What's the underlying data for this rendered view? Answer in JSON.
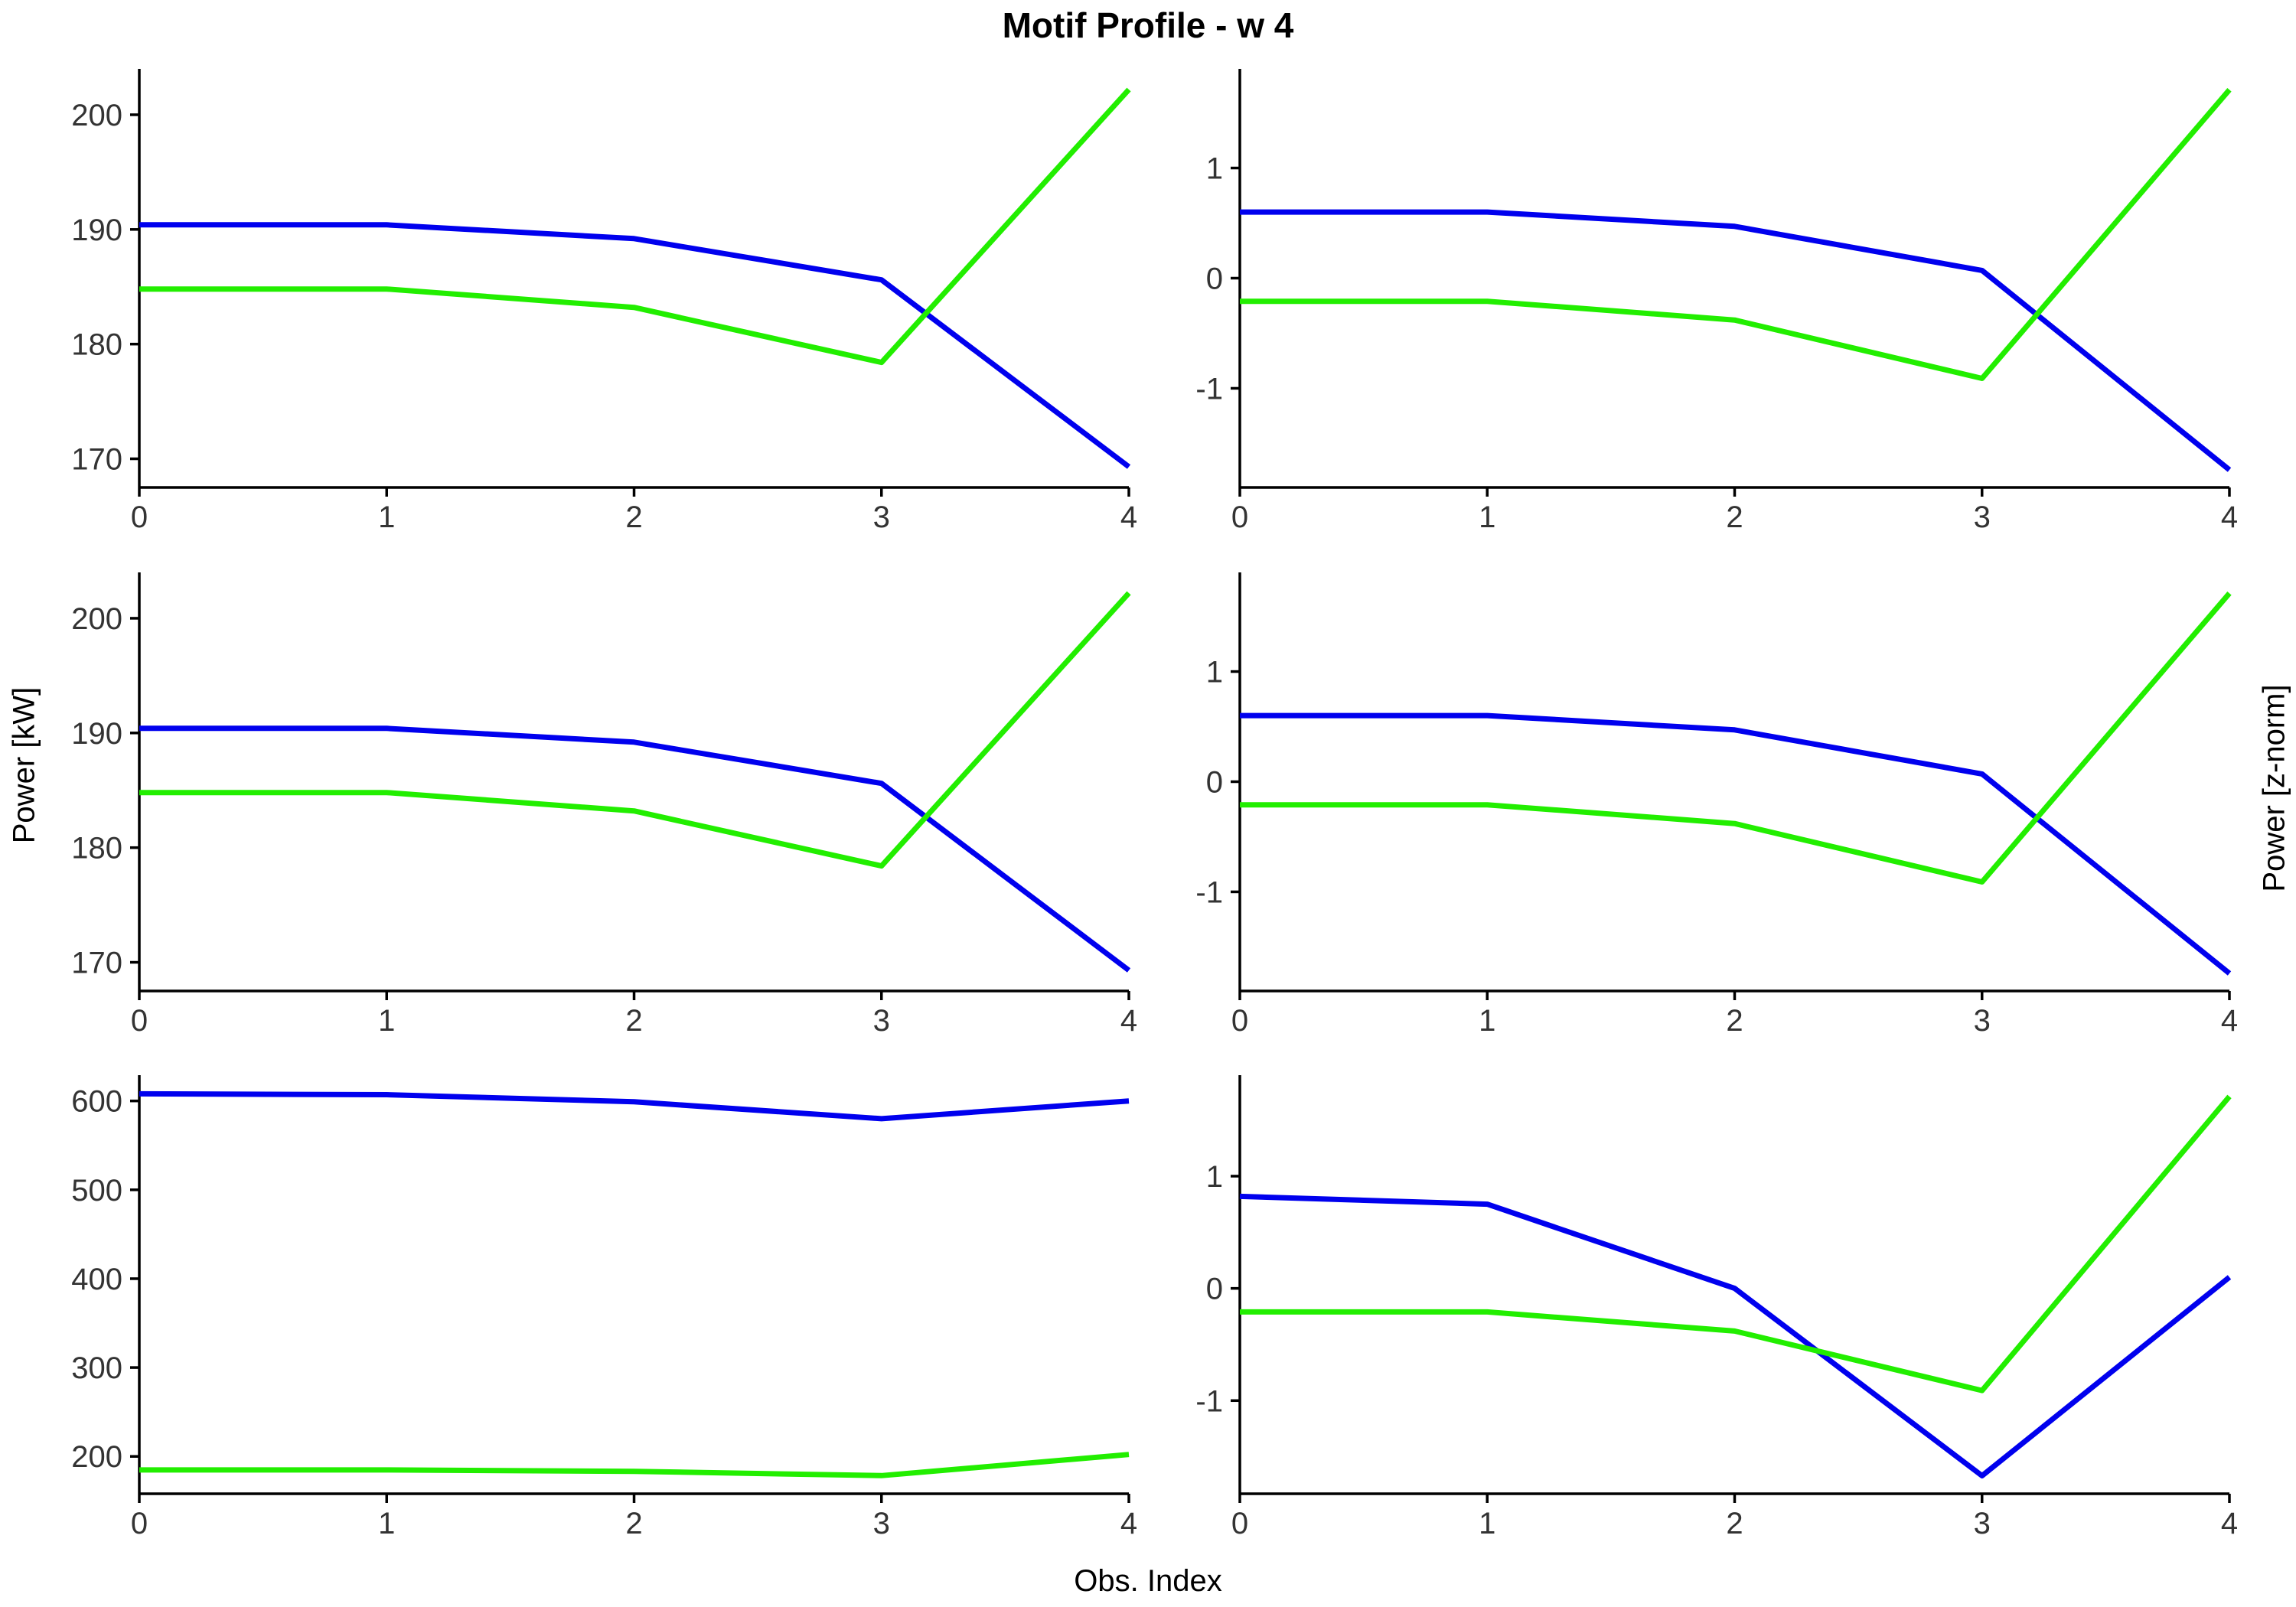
{
  "title": "Motif Profile - w 4",
  "xlabel": "Obs. Index",
  "ylabel_left": "Power [kW]",
  "ylabel_right": "Power [z-norm]",
  "colors": {
    "series_a": "#0000ee",
    "series_b": "#22ee00",
    "axis": "#000000",
    "tick_label": "#333333"
  },
  "chart_data": [
    {
      "type": "line",
      "panel": "row1-left",
      "x": [
        0,
        1,
        2,
        3,
        4
      ],
      "xticks": [
        "0",
        "1",
        "2",
        "3",
        "4"
      ],
      "xlim": [
        0,
        4
      ],
      "ylim": [
        167.5,
        204
      ],
      "yticks": [
        170,
        180,
        190,
        200
      ],
      "ytick_labels": [
        "170",
        "180",
        "190",
        "200"
      ],
      "series": [
        {
          "color": "#0000ee",
          "values": [
            190.4,
            190.4,
            189.2,
            185.6,
            169.3
          ]
        },
        {
          "color": "#22ee00",
          "values": [
            184.8,
            184.8,
            183.2,
            178.4,
            202.2
          ]
        }
      ]
    },
    {
      "type": "line",
      "panel": "row1-right",
      "x": [
        0,
        1,
        2,
        3,
        4
      ],
      "xticks": [
        "0",
        "1",
        "2",
        "3",
        "4"
      ],
      "xlim": [
        0,
        4
      ],
      "ylim": [
        -1.9,
        1.9
      ],
      "yticks": [
        -1,
        0,
        1
      ],
      "ytick_labels": [
        "-1",
        "0",
        "1"
      ],
      "series": [
        {
          "color": "#0000ee",
          "values": [
            0.6,
            0.6,
            0.47,
            0.07,
            -1.74
          ]
        },
        {
          "color": "#22ee00",
          "values": [
            -0.21,
            -0.21,
            -0.38,
            -0.91,
            1.71
          ]
        }
      ]
    },
    {
      "type": "line",
      "panel": "row2-left",
      "x": [
        0,
        1,
        2,
        3,
        4
      ],
      "xticks": [
        "0",
        "1",
        "2",
        "3",
        "4"
      ],
      "xlim": [
        0,
        4
      ],
      "ylim": [
        167.5,
        204
      ],
      "yticks": [
        170,
        180,
        190,
        200
      ],
      "ytick_labels": [
        "170",
        "180",
        "190",
        "200"
      ],
      "series": [
        {
          "color": "#0000ee",
          "values": [
            190.4,
            190.4,
            189.2,
            185.6,
            169.3
          ]
        },
        {
          "color": "#22ee00",
          "values": [
            184.8,
            184.8,
            183.2,
            178.4,
            202.2
          ]
        }
      ]
    },
    {
      "type": "line",
      "panel": "row2-right",
      "x": [
        0,
        1,
        2,
        3,
        4
      ],
      "xticks": [
        "0",
        "1",
        "2",
        "3",
        "4"
      ],
      "xlim": [
        0,
        4
      ],
      "ylim": [
        -1.9,
        1.9
      ],
      "yticks": [
        -1,
        0,
        1
      ],
      "ytick_labels": [
        "-1",
        "0",
        "1"
      ],
      "series": [
        {
          "color": "#0000ee",
          "values": [
            0.6,
            0.6,
            0.47,
            0.07,
            -1.74
          ]
        },
        {
          "color": "#22ee00",
          "values": [
            -0.21,
            -0.21,
            -0.38,
            -0.91,
            1.71
          ]
        }
      ]
    },
    {
      "type": "line",
      "panel": "row3-left",
      "x": [
        0,
        1,
        2,
        3,
        4
      ],
      "xticks": [
        "0",
        "1",
        "2",
        "3",
        "4"
      ],
      "xlim": [
        0,
        4
      ],
      "ylim": [
        158,
        629
      ],
      "yticks": [
        200,
        300,
        400,
        500,
        600
      ],
      "ytick_labels": [
        "200",
        "300",
        "400",
        "500",
        "600"
      ],
      "series": [
        {
          "color": "#0000ee",
          "values": [
            608,
            607,
            599,
            580,
            600
          ]
        },
        {
          "color": "#22ee00",
          "values": [
            184.8,
            184.8,
            183.2,
            178.4,
            202.2
          ]
        }
      ]
    },
    {
      "type": "line",
      "panel": "row3-right",
      "x": [
        0,
        1,
        2,
        3,
        4
      ],
      "xticks": [
        "0",
        "1",
        "2",
        "3",
        "4"
      ],
      "xlim": [
        0,
        4
      ],
      "ylim": [
        -1.83,
        1.9
      ],
      "yticks": [
        -1,
        0,
        1
      ],
      "ytick_labels": [
        "-1",
        "0",
        "1"
      ],
      "series": [
        {
          "color": "#0000ee",
          "values": [
            0.82,
            0.75,
            0.0,
            -1.67,
            0.1
          ]
        },
        {
          "color": "#22ee00",
          "values": [
            -0.21,
            -0.21,
            -0.38,
            -0.91,
            1.71
          ]
        }
      ]
    }
  ]
}
